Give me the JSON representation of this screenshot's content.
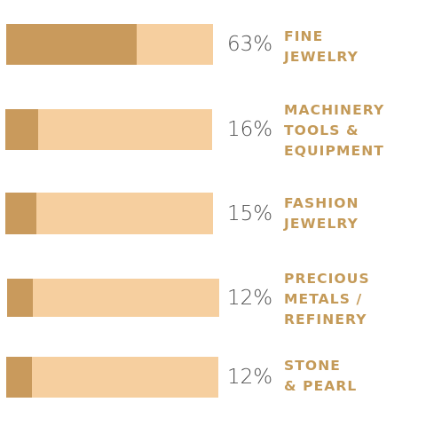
{
  "chart_data": {
    "type": "bar",
    "orientation": "horizontal",
    "categories": [
      [
        "FINE",
        "JEWELRY"
      ],
      [
        "MACHINERY",
        "TOOLS &",
        "EQUIPMENT"
      ],
      [
        "FASHION",
        "JEWELRY"
      ],
      [
        "PRECIOUS",
        "METALS /",
        "REFINERY"
      ],
      [
        "STONE",
        "& PEARL"
      ]
    ],
    "values": [
      63,
      16,
      15,
      12,
      12
    ],
    "value_labels": [
      "63%",
      "16%",
      "15%",
      "12%",
      "12%"
    ],
    "unit": "%",
    "xlim": [
      0,
      100
    ],
    "grid": false,
    "legend": "none"
  },
  "colors": {
    "fill": "#c99a5c",
    "track": "#f6cf9f",
    "value_text": "#505050",
    "category_text": "#c49a58",
    "background": "#ffffff"
  }
}
